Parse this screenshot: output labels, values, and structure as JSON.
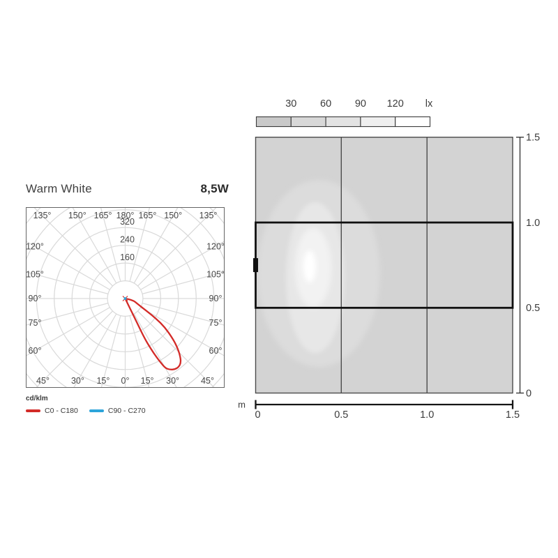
{
  "polar": {
    "title": "Warm White",
    "wattage": "8,5W",
    "unit": "cd/klm",
    "legend": [
      {
        "label": "C0 - C180",
        "color": "#d32b28"
      },
      {
        "label": "C90 - C270",
        "color": "#2da4da"
      }
    ]
  },
  "cone": {
    "lux_labels": [
      "30",
      "60",
      "90",
      "120"
    ],
    "lux_unit": "lx",
    "meter_unit": "m",
    "x_tick_labels": [
      "0",
      "0.5",
      "1.0",
      "1.5"
    ],
    "y_tick_labels": [
      "1.5",
      "1.0",
      "0.5",
      "0"
    ]
  },
  "chart_data": [
    {
      "type": "line",
      "subtype": "polar-photometric-intensity",
      "title": "Warm White",
      "wattage": "8,5W",
      "unit": "cd/klm",
      "angle_ticks_deg": [
        0,
        15,
        30,
        45,
        60,
        75,
        90,
        105,
        120,
        135,
        150,
        165,
        180
      ],
      "radial_ticks": [
        160,
        240,
        320
      ],
      "radial_gridlines": [
        80,
        160,
        240,
        320,
        400,
        480,
        560
      ],
      "peak": {
        "angle_deg": 38,
        "value_cd_klm": 392
      },
      "series": [
        {
          "name": "C0 - C180",
          "color": "#d32b28",
          "points": [
            [
              90,
              0
            ],
            [
              80,
              34
            ],
            [
              66,
              62
            ],
            [
              60,
              110
            ],
            [
              57,
              165
            ],
            [
              54,
              222
            ],
            [
              50,
              278
            ],
            [
              47,
              320
            ],
            [
              44,
              356
            ],
            [
              41,
              383
            ],
            [
              38,
              392
            ],
            [
              35,
              390
            ],
            [
              32,
              378
            ],
            [
              30,
              362
            ],
            [
              29,
              330
            ],
            [
              28,
              296
            ],
            [
              27,
              252
            ],
            [
              26,
              205
            ],
            [
              26,
              140
            ],
            [
              26,
              75
            ],
            [
              27,
              0
            ]
          ]
        },
        {
          "name": "C90 - C270",
          "color": "#2da4da",
          "points": [
            [
              0,
              0
            ]
          ]
        }
      ]
    },
    {
      "type": "heatmap",
      "subtype": "illuminance-contour-plan",
      "area_m": {
        "width": 1.5,
        "height": 1.5
      },
      "grid_step_m": 0.5,
      "unit": "lx",
      "levels_lx": [
        30,
        60,
        90,
        120
      ],
      "level_colors": [
        "#dcdcdc",
        "#e7e7e7",
        "#f2f2f2",
        "#ffffff"
      ],
      "legend_segment_colors": [
        "#c9c9c9",
        "#d8d8d8",
        "#e3e3e3",
        "#efefef",
        "#ffffff"
      ],
      "background_color": "#d3d3d3",
      "luminaire_position_m": {
        "x": 0,
        "y": 0.75
      },
      "highlighted_row_m": {
        "y_from": 0.5,
        "y_to": 1.0
      },
      "contours_m": [
        {
          "level_lx": 30,
          "cx": 0.368,
          "cy": 0.701,
          "rx": 0.358,
          "ry": 0.548
        },
        {
          "level_lx": 60,
          "cx": 0.348,
          "cy": 0.677,
          "rx": 0.171,
          "ry": 0.442
        },
        {
          "level_lx": 90,
          "cx": 0.336,
          "cy": 0.734,
          "rx": 0.106,
          "ry": 0.233
        },
        {
          "level_lx": 120,
          "cx": 0.315,
          "cy": 0.742,
          "rx": 0.037,
          "ry": 0.094
        }
      ]
    }
  ]
}
